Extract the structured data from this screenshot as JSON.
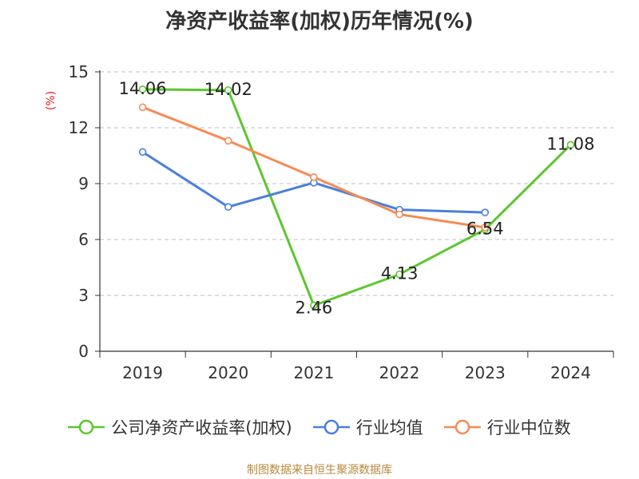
{
  "chart_data": {
    "type": "line",
    "title": "净资产收益率(加权)历年情况(%)",
    "ylabel": "(%)",
    "xlabel": "",
    "categories": [
      "2019",
      "2020",
      "2021",
      "2022",
      "2023",
      "2024"
    ],
    "ylim": [
      0,
      15
    ],
    "yticks": [
      0,
      3,
      6,
      9,
      12,
      15
    ],
    "grid": true,
    "legend_position": "bottom",
    "series": [
      {
        "name": "公司净资产收益率(加权)",
        "color": "#5cc62e",
        "values": [
          14.06,
          14.02,
          2.46,
          4.13,
          6.54,
          11.08
        ],
        "labels": [
          "14.06",
          "14.02",
          "2.46",
          "4.13",
          "6.54",
          "11.08"
        ]
      },
      {
        "name": "行业均值",
        "color": "#4a7fdb",
        "values": [
          10.7,
          7.75,
          9.05,
          7.6,
          7.45,
          null
        ]
      },
      {
        "name": "行业中位数",
        "color": "#f58b56",
        "values": [
          13.1,
          11.3,
          9.35,
          7.35,
          6.65,
          null
        ]
      }
    ]
  },
  "source": "制图数据来自恒生聚源数据库"
}
